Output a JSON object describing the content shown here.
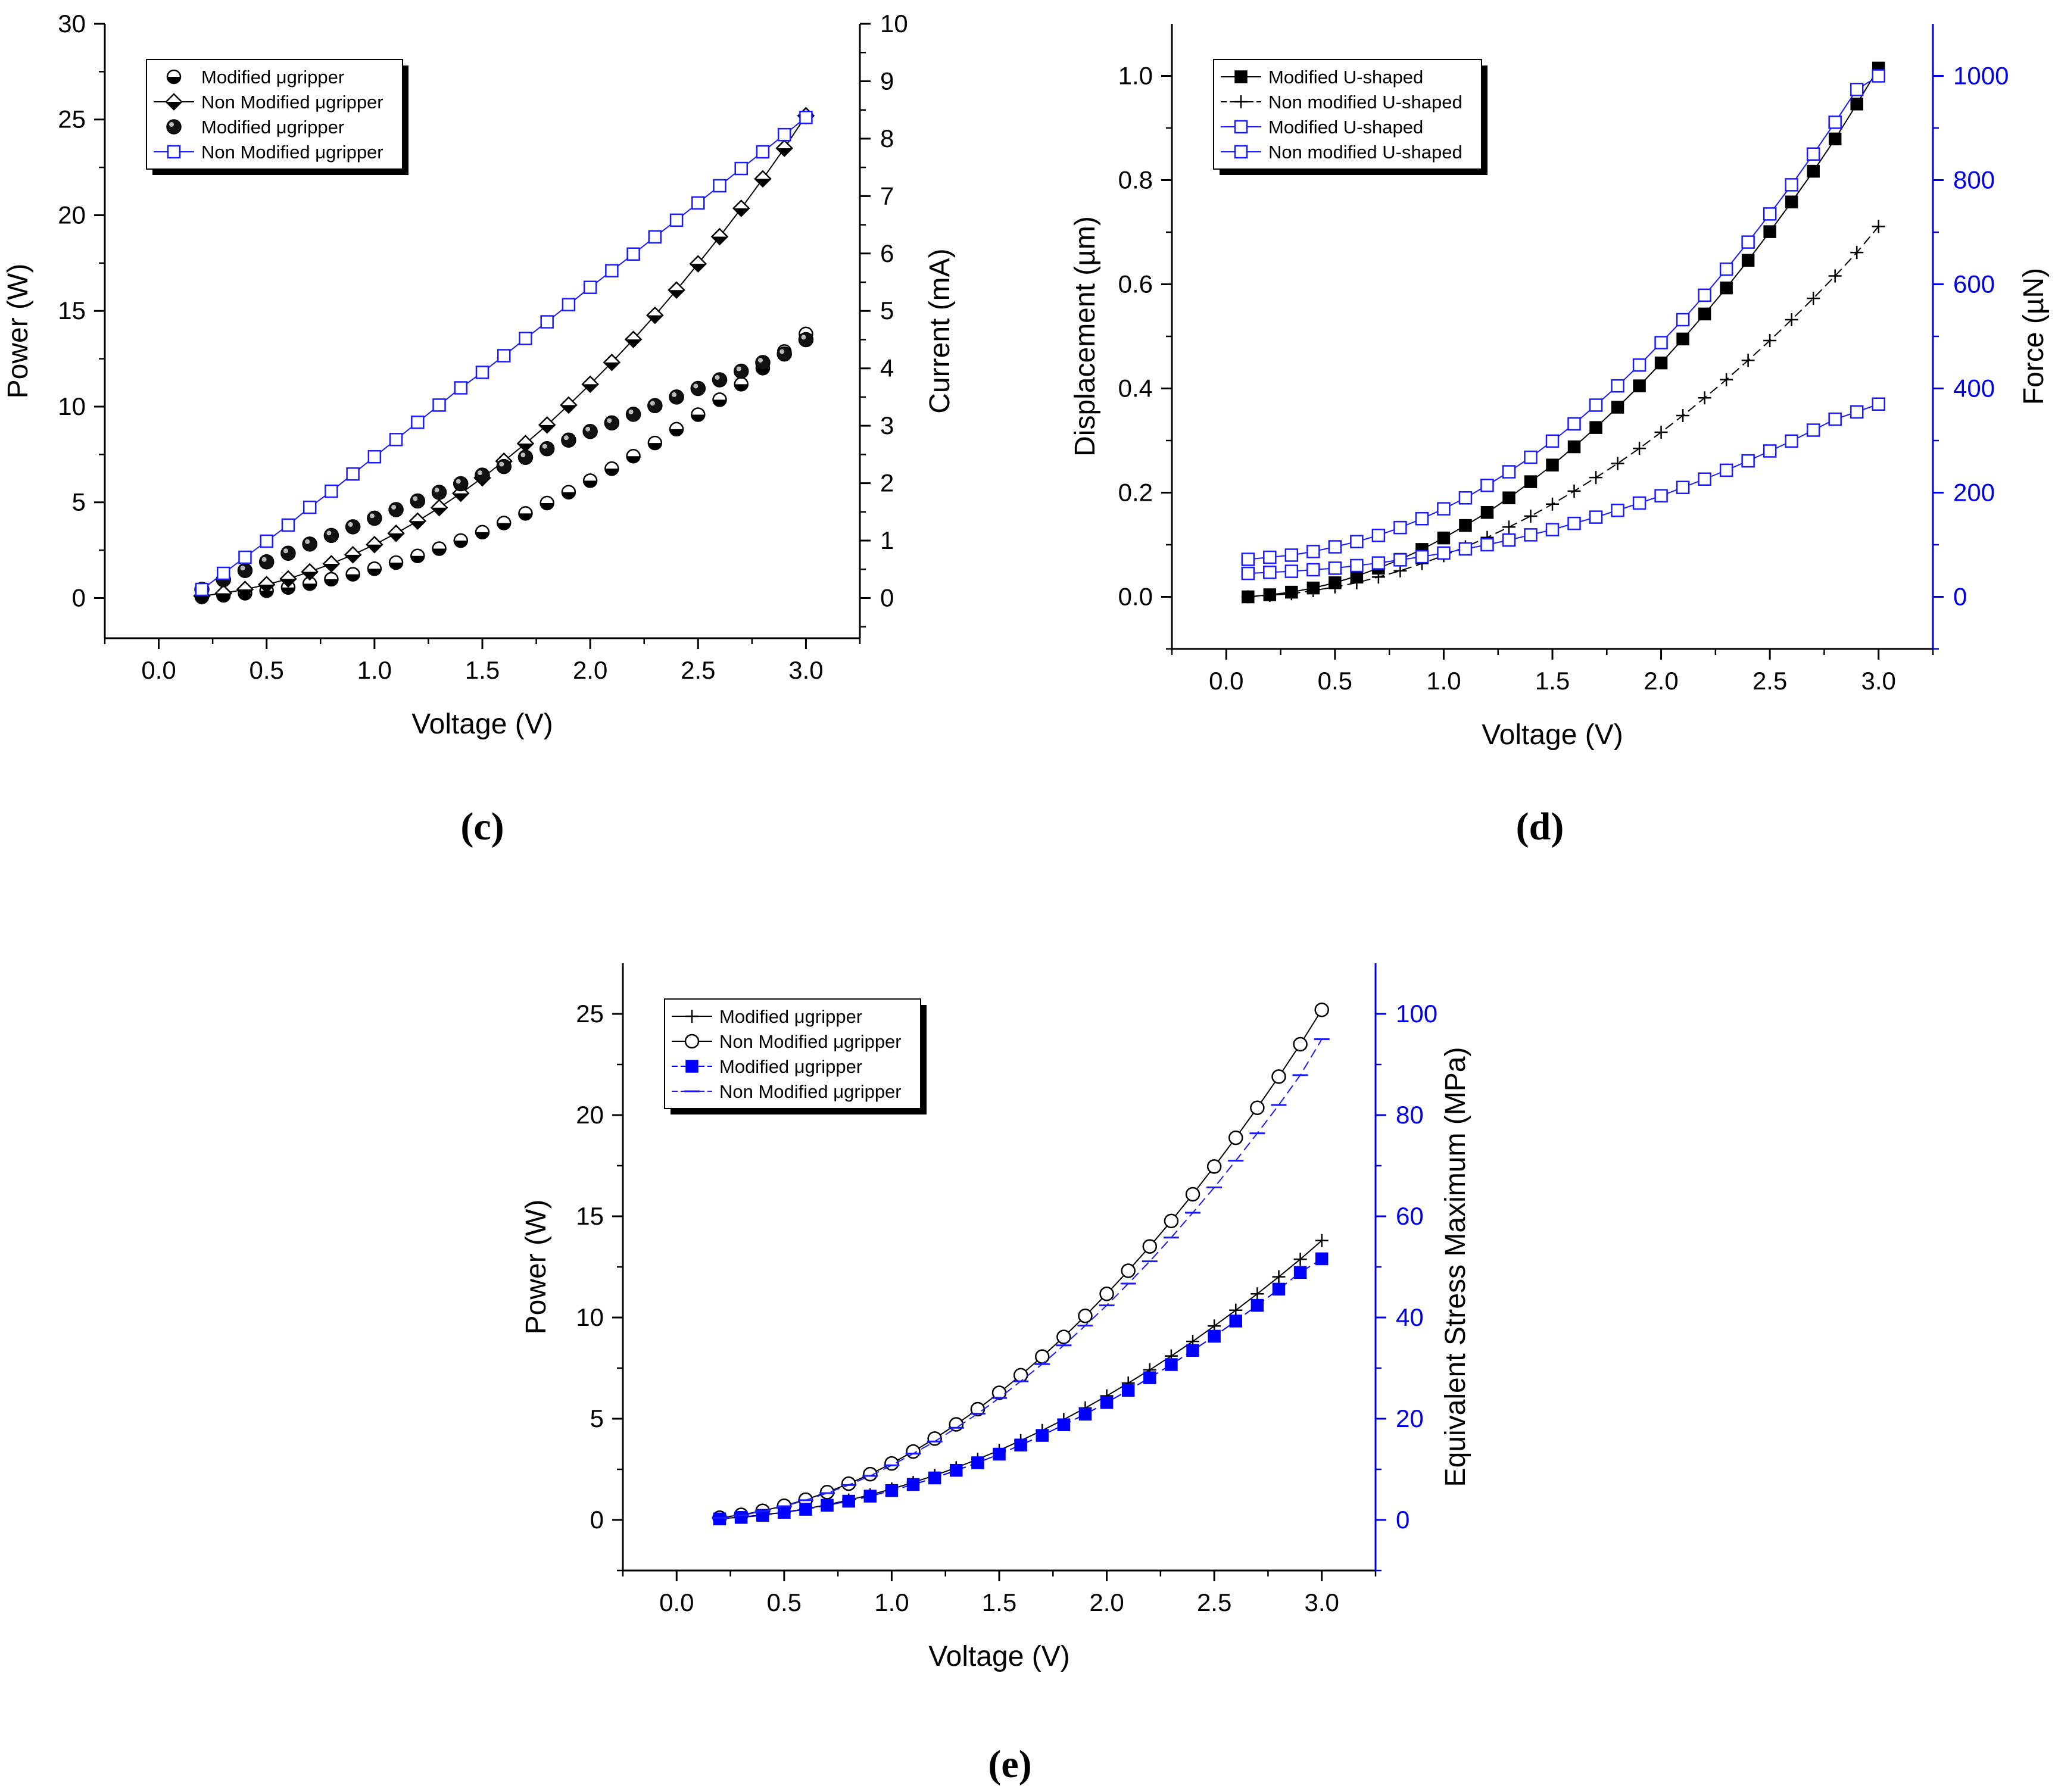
{
  "chart_data": [
    {
      "type": "line",
      "panel_label": "(c)",
      "xlabel": "Voltage (V)",
      "ylabel": "Power (W)",
      "y2label": "Current (mA)",
      "xlim": [
        -0.25,
        3.25
      ],
      "ylim": [
        -2.1,
        30
      ],
      "y2lim": [
        -0.7,
        10
      ],
      "xticks": [
        0.0,
        0.5,
        1.0,
        1.5,
        2.0,
        2.5,
        3.0
      ],
      "xtick_labels": [
        "0.0",
        "0.5",
        "1.0",
        "1.5",
        "2.0",
        "2.5",
        "3.0"
      ],
      "yticks": [
        0,
        5,
        10,
        15,
        20,
        25,
        30
      ],
      "ytick_labels": [
        "0",
        "5",
        "10",
        "15",
        "20",
        "25",
        "30"
      ],
      "y2ticks": [
        0,
        1,
        2,
        3,
        4,
        5,
        6,
        7,
        8,
        9,
        10
      ],
      "y2tick_labels": [
        "0",
        "1",
        "2",
        "3",
        "4",
        "5",
        "6",
        "7",
        "8",
        "9",
        "10"
      ],
      "right_axis_color": "#000000",
      "legend_position": "top-left",
      "x": [
        0.2,
        0.3,
        0.4,
        0.5,
        0.6,
        0.7,
        0.8,
        0.9,
        1.0,
        1.1,
        1.2,
        1.3,
        1.4,
        1.5,
        1.6,
        1.7,
        1.8,
        1.9,
        2.0,
        2.1,
        2.2,
        2.3,
        2.4,
        2.5,
        2.6,
        2.7,
        2.8,
        2.9,
        3.0
      ],
      "series": [
        {
          "name": "Modified μgripper",
          "axis": "left",
          "marker": "half-circle",
          "line": "none",
          "color": "#000000",
          "values": [
            0.06,
            0.14,
            0.25,
            0.38,
            0.55,
            0.75,
            0.98,
            1.24,
            1.53,
            1.85,
            2.2,
            2.58,
            3.0,
            3.44,
            3.92,
            4.42,
            4.96,
            5.53,
            6.13,
            6.76,
            7.41,
            8.1,
            8.82,
            9.58,
            10.36,
            11.17,
            12.01,
            12.88,
            13.8
          ]
        },
        {
          "name": "Non Modified μgripper",
          "axis": "left",
          "marker": "half-diamond",
          "line": "solid",
          "color": "#000000",
          "values": [
            0.11,
            0.25,
            0.45,
            0.7,
            1.0,
            1.37,
            1.79,
            2.26,
            2.79,
            3.38,
            4.02,
            4.72,
            5.47,
            6.28,
            7.15,
            8.07,
            9.04,
            10.08,
            11.17,
            12.31,
            13.51,
            14.77,
            16.09,
            17.46,
            18.88,
            20.36,
            21.9,
            23.5,
            25.2
          ]
        },
        {
          "name": "Modified μgripper",
          "axis": "right",
          "marker": "sphere",
          "line": "none",
          "color": "#000000",
          "values": [
            0.15,
            0.32,
            0.48,
            0.63,
            0.78,
            0.94,
            1.09,
            1.24,
            1.39,
            1.54,
            1.69,
            1.84,
            1.99,
            2.14,
            2.29,
            2.45,
            2.6,
            2.75,
            2.9,
            3.05,
            3.2,
            3.35,
            3.5,
            3.65,
            3.8,
            3.95,
            4.1,
            4.25,
            4.5
          ]
        },
        {
          "name": "Non Modified μgripper",
          "axis": "right",
          "marker": "open-square",
          "line": "solid",
          "color": "#1a1aff",
          "values": [
            0.15,
            0.43,
            0.71,
            0.99,
            1.27,
            1.58,
            1.86,
            2.16,
            2.46,
            2.76,
            3.06,
            3.36,
            3.66,
            3.93,
            4.22,
            4.52,
            4.81,
            5.11,
            5.41,
            5.7,
            5.99,
            6.29,
            6.58,
            6.88,
            7.18,
            7.48,
            7.77,
            8.07,
            8.37
          ]
        }
      ]
    },
    {
      "type": "line",
      "panel_label": "(d)",
      "xlabel": "Voltage (V)",
      "ylabel": "Displacement (µm)",
      "y2label": "Force (µN)",
      "xlim": [
        -0.25,
        3.25
      ],
      "ylim": [
        -0.1,
        1.1
      ],
      "y2lim": [
        -100,
        1100
      ],
      "xticks": [
        0.0,
        0.5,
        1.0,
        1.5,
        2.0,
        2.5,
        3.0
      ],
      "xtick_labels": [
        "0.0",
        "0.5",
        "1.0",
        "1.5",
        "2.0",
        "2.5",
        "3.0"
      ],
      "yticks": [
        0.0,
        0.2,
        0.4,
        0.6,
        0.8,
        1.0
      ],
      "ytick_labels": [
        "0.0",
        "0.2",
        "0.4",
        "0.6",
        "0.8",
        "1.0"
      ],
      "y2ticks": [
        0,
        200,
        400,
        600,
        800,
        1000
      ],
      "y2tick_labels": [
        "0",
        "200",
        "400",
        "600",
        "800",
        "1000"
      ],
      "right_axis_color": "#0000e6",
      "legend_position": "top-left",
      "x": [
        0.1,
        0.2,
        0.3,
        0.4,
        0.5,
        0.6,
        0.7,
        0.8,
        0.9,
        1.0,
        1.1,
        1.2,
        1.3,
        1.4,
        1.5,
        1.6,
        1.7,
        1.8,
        1.9,
        2.0,
        2.1,
        2.2,
        2.3,
        2.4,
        2.5,
        2.6,
        2.7,
        2.8,
        2.9,
        3.0
      ],
      "series": [
        {
          "name": "Modified U-shaped",
          "axis": "left",
          "marker": "filled-square",
          "line": "solid",
          "color": "#000000",
          "values": [
            0.0,
            0.004,
            0.009,
            0.017,
            0.027,
            0.04,
            0.055,
            0.072,
            0.091,
            0.113,
            0.137,
            0.162,
            0.19,
            0.221,
            0.253,
            0.288,
            0.325,
            0.364,
            0.405,
            0.449,
            0.495,
            0.543,
            0.593,
            0.646,
            0.701,
            0.758,
            0.817,
            0.879,
            0.946,
            1.015
          ]
        },
        {
          "name": "Non modified U-shaped",
          "axis": "left",
          "marker": "plus",
          "line": "dashed",
          "color": "#000000",
          "values": [
            0.0,
            0.003,
            0.006,
            0.012,
            0.019,
            0.027,
            0.038,
            0.05,
            0.064,
            0.079,
            0.096,
            0.114,
            0.134,
            0.155,
            0.178,
            0.203,
            0.229,
            0.256,
            0.285,
            0.316,
            0.348,
            0.382,
            0.417,
            0.454,
            0.492,
            0.532,
            0.573,
            0.616,
            0.661,
            0.711
          ]
        },
        {
          "name": "Modified U-shaped",
          "axis": "right",
          "marker": "open-square",
          "line": "solid",
          "color": "#1a1aff",
          "values": [
            72,
            76,
            80,
            87,
            96,
            106,
            118,
            133,
            150,
            169,
            190,
            214,
            240,
            268,
            299,
            332,
            368,
            405,
            445,
            488,
            532,
            579,
            629,
            681,
            735,
            791,
            850,
            911,
            974,
            1000
          ]
        },
        {
          "name": "Non modified U-shaped",
          "axis": "right",
          "marker": "open-square",
          "line": "solid",
          "color": "#1a1aff",
          "values": [
            45,
            47,
            49,
            52,
            55,
            60,
            65,
            71,
            77,
            84,
            92,
            100,
            109,
            119,
            129,
            141,
            153,
            166,
            180,
            194,
            210,
            226,
            243,
            261,
            280,
            299,
            320,
            341,
            355,
            370
          ]
        }
      ]
    },
    {
      "type": "line",
      "panel_label": "(e)",
      "xlabel": "Voltage (V)",
      "ylabel": "Power (W)",
      "y2label": "Equivalent Stress Maximum (MPa)",
      "xlim": [
        -0.25,
        3.25
      ],
      "ylim": [
        -2.5,
        27.5
      ],
      "y2lim": [
        -10,
        110
      ],
      "xticks": [
        0.0,
        0.5,
        1.0,
        1.5,
        2.0,
        2.5,
        3.0
      ],
      "xtick_labels": [
        "0.0",
        "0.5",
        "1.0",
        "1.5",
        "2.0",
        "2.5",
        "3.0"
      ],
      "yticks": [
        0,
        5,
        10,
        15,
        20,
        25
      ],
      "ytick_labels": [
        "0",
        "5",
        "10",
        "15",
        "20",
        "25"
      ],
      "y2ticks": [
        0,
        20,
        40,
        60,
        80,
        100
      ],
      "y2tick_labels": [
        "0",
        "20",
        "40",
        "60",
        "80",
        "100"
      ],
      "right_axis_color": "#0000e6",
      "legend_position": "top-left",
      "x": [
        0.2,
        0.3,
        0.4,
        0.5,
        0.6,
        0.7,
        0.8,
        0.9,
        1.0,
        1.1,
        1.2,
        1.3,
        1.4,
        1.5,
        1.6,
        1.7,
        1.8,
        1.9,
        2.0,
        2.1,
        2.2,
        2.3,
        2.4,
        2.5,
        2.6,
        2.7,
        2.8,
        2.9,
        3.0
      ],
      "series": [
        {
          "name": "Modified μgripper",
          "axis": "left",
          "marker": "plus",
          "line": "solid",
          "color": "#000000",
          "values": [
            0.06,
            0.14,
            0.25,
            0.38,
            0.55,
            0.75,
            0.98,
            1.24,
            1.53,
            1.85,
            2.2,
            2.58,
            3.0,
            3.44,
            3.92,
            4.42,
            4.96,
            5.53,
            6.13,
            6.76,
            7.41,
            8.1,
            8.82,
            9.58,
            10.36,
            11.17,
            12.01,
            12.88,
            13.8
          ]
        },
        {
          "name": "Non Modified μgripper",
          "axis": "left",
          "marker": "open-circle",
          "line": "solid",
          "color": "#000000",
          "values": [
            0.11,
            0.25,
            0.45,
            0.7,
            1.0,
            1.37,
            1.79,
            2.26,
            2.79,
            3.38,
            4.02,
            4.72,
            5.47,
            6.28,
            7.15,
            8.07,
            9.04,
            10.08,
            11.17,
            12.31,
            13.51,
            14.77,
            16.09,
            17.46,
            18.88,
            20.36,
            21.9,
            23.5,
            25.2
          ]
        },
        {
          "name": "Modified μgripper",
          "axis": "right",
          "marker": "filled-square",
          "line": "dashed",
          "color": "#0000ff",
          "values": [
            0.2,
            0.5,
            0.9,
            1.5,
            2.1,
            2.9,
            3.7,
            4.7,
            5.8,
            7.0,
            8.3,
            9.8,
            11.3,
            13.0,
            14.8,
            16.7,
            18.8,
            20.9,
            23.2,
            25.6,
            28.1,
            30.7,
            33.5,
            36.3,
            39.3,
            42.4,
            45.6,
            48.9,
            51.6
          ]
        },
        {
          "name": "Non Modified μgripper",
          "axis": "right",
          "marker": "dash",
          "line": "dashed",
          "color": "#1a1aff",
          "values": [
            0.4,
            0.9,
            1.7,
            2.7,
            3.9,
            5.3,
            6.9,
            8.7,
            10.8,
            13.1,
            15.5,
            18.2,
            21.0,
            24.1,
            27.4,
            30.8,
            34.5,
            38.4,
            42.4,
            46.7,
            51.1,
            55.8,
            60.7,
            65.7,
            71.0,
            76.4,
            82.0,
            87.9,
            95.0
          ]
        }
      ]
    }
  ]
}
